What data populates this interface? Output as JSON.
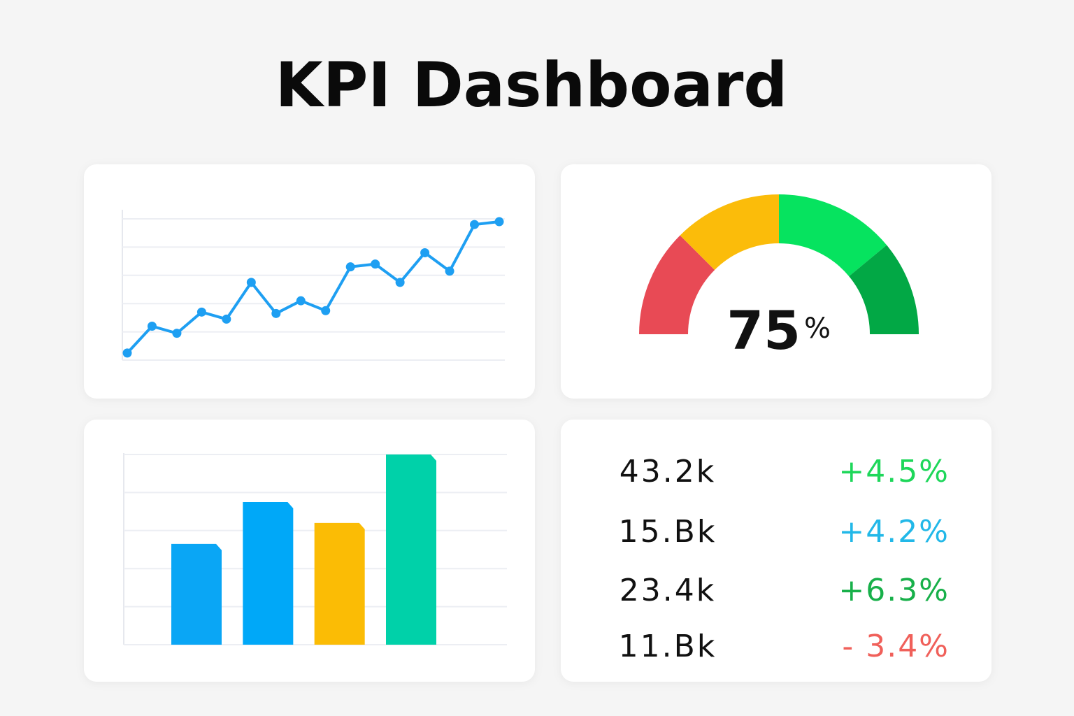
{
  "title": "KPI Dashboard",
  "chart_data": [
    {
      "type": "line",
      "color": "#1e9ff2",
      "categories": [
        null,
        null,
        null,
        null,
        null,
        null,
        null,
        null,
        null,
        null,
        null,
        null,
        null,
        null,
        null,
        null
      ],
      "values": [
        0.25,
        1.2,
        0.95,
        1.7,
        1.45,
        2.75,
        1.65,
        2.1,
        1.75,
        3.3,
        3.4,
        2.75,
        3.8,
        3.15,
        4.8,
        4.9
      ],
      "ylim": [
        0,
        5
      ],
      "yticks": [
        0,
        1,
        2,
        3,
        4,
        5
      ],
      "grid": true
    },
    {
      "type": "gauge",
      "value": 75,
      "unit": "%",
      "range": [
        0,
        100
      ],
      "bands": [
        {
          "from": 0,
          "to": 25,
          "color": "#e84a55"
        },
        {
          "from": 25,
          "to": 50,
          "color": "#fbbc0a"
        },
        {
          "from": 50,
          "to": 78,
          "color": "#06e35f"
        },
        {
          "from": 78,
          "to": 100,
          "color": "#02a845"
        }
      ]
    },
    {
      "type": "bar",
      "categories": [
        null,
        null,
        null,
        null
      ],
      "values": [
        2.65,
        3.75,
        3.2,
        5
      ],
      "colors": [
        "#0aa6f5",
        "#00a8f8",
        "#fbbc05",
        "#00d1a9"
      ],
      "ylim": [
        0,
        5
      ],
      "yticks": [
        0,
        1,
        2,
        3,
        4,
        5
      ],
      "grid": true
    }
  ],
  "stats": {
    "rows": [
      {
        "value": "43.2k",
        "change": "+4.5%",
        "color": "#1ed75a"
      },
      {
        "value": "15.Bk",
        "change": "+4.2%",
        "color": "#22b8e8"
      },
      {
        "value": "23.4k",
        "change": "+6.3%",
        "color": "#18b04a"
      },
      {
        "value": "11.Bk",
        "change": "- 3.4%",
        "color": "#f0605a"
      }
    ]
  }
}
